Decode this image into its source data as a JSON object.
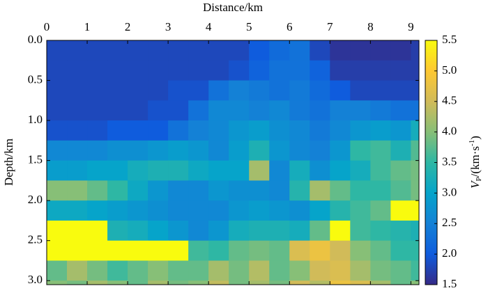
{
  "chart_data": {
    "type": "heatmap",
    "x_label": "Distance/km",
    "y_label": "Depth/km",
    "colorbar_label": {
      "symbol": "V",
      "subscript": "P",
      "unit": "/(km·s",
      "superscript": "-1",
      "close": ")"
    },
    "xlim": [
      0,
      9.2
    ],
    "ylim": [
      3.05,
      0
    ],
    "xticks": [
      0,
      1,
      2,
      3,
      4,
      5,
      6,
      7,
      8,
      9
    ],
    "yticks": [
      {
        "value": 0,
        "label": "0.0"
      },
      0.5,
      {
        "value": 1,
        "label": "1.0"
      },
      1.5,
      {
        "value": 2,
        "label": "2.0"
      },
      2.5,
      {
        "value": 3,
        "label": "3.0"
      }
    ],
    "clim": [
      1.5,
      5.5
    ],
    "cticks": [
      1.5,
      {
        "value": 2,
        "label": "2.0"
      },
      2.5,
      {
        "value": 3,
        "label": "3.0"
      },
      3.5,
      {
        "value": 4,
        "label": "4.0"
      },
      4.5,
      {
        "value": 5,
        "label": "5.0"
      },
      5.5
    ],
    "colormap": [
      "#352a87",
      "#0f5cdd",
      "#1481d6",
      "#06a4ca",
      "#2eb7a4",
      "#87bf77",
      "#d1bb59",
      "#fec832",
      "#f9fb0e"
    ],
    "xbins": [
      0,
      0.5,
      1,
      1.5,
      2,
      2.5,
      3,
      3.5,
      4,
      4.5,
      5,
      5.5,
      6,
      6.5,
      7,
      7.5,
      8,
      8.5,
      9,
      9.2
    ],
    "ybins": [
      0,
      0.25,
      0.5,
      0.75,
      1,
      1.25,
      1.5,
      1.75,
      2,
      2.25,
      2.5,
      2.75,
      3,
      3.05
    ],
    "z": [
      [
        1.8,
        1.8,
        1.8,
        1.8,
        1.8,
        1.8,
        1.8,
        1.8,
        1.8,
        1.8,
        2.0,
        2.2,
        2.3,
        1.8,
        1.6,
        1.6,
        1.6,
        1.6,
        1.7
      ],
      [
        1.8,
        1.8,
        1.8,
        1.8,
        1.8,
        1.8,
        1.8,
        1.8,
        1.8,
        1.9,
        2.1,
        2.3,
        2.3,
        2.1,
        1.7,
        1.7,
        1.7,
        1.7,
        1.7
      ],
      [
        1.8,
        1.8,
        1.8,
        1.8,
        1.8,
        1.8,
        1.9,
        1.9,
        2.3,
        2.5,
        2.4,
        2.3,
        2.4,
        2.2,
        2.0,
        1.8,
        1.8,
        1.8,
        1.8
      ],
      [
        1.8,
        1.8,
        1.8,
        1.8,
        1.8,
        1.9,
        1.9,
        2.3,
        2.6,
        2.6,
        2.5,
        2.6,
        2.4,
        2.3,
        2.5,
        2.5,
        2.4,
        2.3,
        2.3
      ],
      [
        1.9,
        1.9,
        1.9,
        2.0,
        2.0,
        2.0,
        2.3,
        2.5,
        2.6,
        2.8,
        2.9,
        2.7,
        2.6,
        2.4,
        2.6,
        2.8,
        2.9,
        2.8,
        3.2
      ],
      [
        2.6,
        2.6,
        2.6,
        2.7,
        2.7,
        2.8,
        2.9,
        2.8,
        2.6,
        2.9,
        3.3,
        2.8,
        2.6,
        2.5,
        2.8,
        3.5,
        3.6,
        3.3,
        3.7
      ],
      [
        2.9,
        2.9,
        3.0,
        3.0,
        3.2,
        3.3,
        3.3,
        3.1,
        3.0,
        3.0,
        4.2,
        2.6,
        3.2,
        2.7,
        3.0,
        3.2,
        3.6,
        3.8,
        3.9
      ],
      [
        4.0,
        4.0,
        3.8,
        3.5,
        3.1,
        2.8,
        2.6,
        2.6,
        2.8,
        2.7,
        2.7,
        2.6,
        3.4,
        4.2,
        3.8,
        3.5,
        3.5,
        3.7,
        3.9
      ],
      [
        3.1,
        3.1,
        3.0,
        2.9,
        2.8,
        2.7,
        2.6,
        2.6,
        2.6,
        2.8,
        2.9,
        2.8,
        2.7,
        3.0,
        3.4,
        3.6,
        3.8,
        5.5,
        5.5
      ],
      [
        5.5,
        5.5,
        5.5,
        3.3,
        3.2,
        3.0,
        2.8,
        2.6,
        2.8,
        3.2,
        3.3,
        3.3,
        3.2,
        3.8,
        5.5,
        3.6,
        3.5,
        3.4,
        3.3
      ],
      [
        5.5,
        5.5,
        5.5,
        5.5,
        5.5,
        5.5,
        5.5,
        3.6,
        3.5,
        3.8,
        3.9,
        3.8,
        4.6,
        4.8,
        4.5,
        4.0,
        3.8,
        3.5,
        3.5
      ],
      [
        3.8,
        4.2,
        3.9,
        3.6,
        3.8,
        4.0,
        3.8,
        3.8,
        4.2,
        3.9,
        4.3,
        3.8,
        4.0,
        4.5,
        4.6,
        4.2,
        3.9,
        3.8,
        3.6
      ],
      [
        4.0,
        3.9,
        4.2,
        4.0,
        3.8,
        4.2,
        3.9,
        4.0,
        4.4,
        3.9,
        4.2,
        3.9,
        4.5,
        4.3,
        4.8,
        4.6,
        4.2,
        3.8,
        4.0
      ]
    ]
  }
}
